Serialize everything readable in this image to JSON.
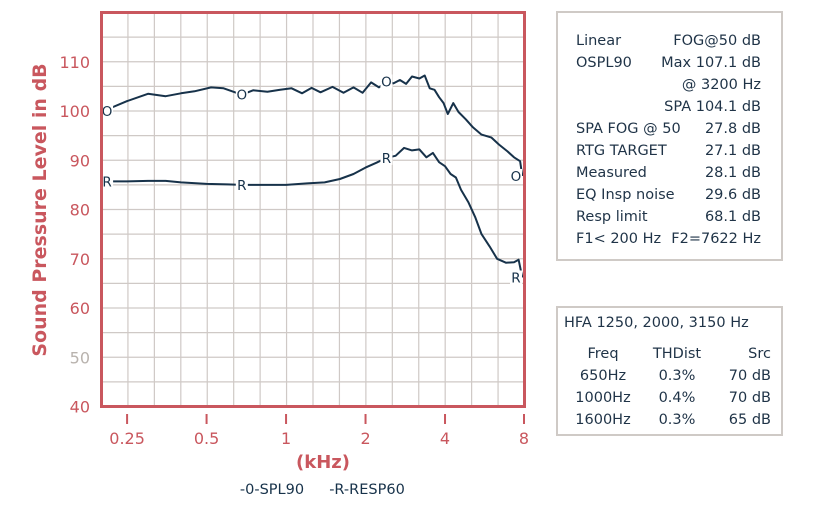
{
  "chart_data": {
    "type": "line",
    "title": "",
    "xlabel": "(kHz)",
    "ylabel": "Sound Pressure Level in dB",
    "x_scale": "log2",
    "xlim": [
      0.2,
      8
    ],
    "ylim": [
      40,
      120
    ],
    "x_ticks": [
      0.25,
      0.5,
      1,
      2,
      4,
      8
    ],
    "x_tick_labels": [
      "0.25",
      "0.5",
      "1",
      "2",
      "4",
      "8"
    ],
    "y_ticks": [
      40,
      50,
      60,
      70,
      80,
      90,
      100,
      110
    ],
    "y_tick_labels": [
      "40",
      "50",
      "60",
      "70",
      "80",
      "90",
      "100",
      "110"
    ],
    "grid": true,
    "grid_minor": {
      "x_per_octave": 3,
      "y_step_db": 5
    },
    "legend_position": "bottom",
    "legend": [
      "-0-SPL90",
      "-R-RESP60"
    ],
    "series": [
      {
        "name": "SPL90",
        "marker": "O",
        "color": "#17324a",
        "x": [
          0.21,
          0.25,
          0.3,
          0.35,
          0.4,
          0.45,
          0.52,
          0.58,
          0.68,
          0.75,
          0.85,
          0.95,
          1.05,
          1.15,
          1.25,
          1.35,
          1.5,
          1.65,
          1.8,
          1.95,
          2.1,
          2.25,
          2.4,
          2.55,
          2.7,
          2.85,
          3.0,
          3.2,
          3.35,
          3.5,
          3.65,
          3.8,
          3.95,
          4.1,
          4.3,
          4.5,
          4.8,
          5.1,
          5.5,
          6.0,
          6.4,
          6.9,
          7.3,
          7.7,
          7.85
        ],
        "y": [
          100.3,
          102,
          103.5,
          103,
          103.6,
          104,
          104.8,
          104.6,
          103.3,
          104.2,
          103.9,
          104.3,
          104.6,
          103.6,
          104.7,
          103.8,
          104.9,
          103.7,
          104.8,
          103.7,
          105.8,
          104.8,
          106,
          105.6,
          106.3,
          105.5,
          107,
          106.6,
          107.2,
          104.6,
          104.3,
          102.8,
          101.6,
          99.4,
          101.6,
          99.8,
          98.3,
          96.7,
          95.2,
          94.6,
          93.2,
          91.8,
          90.6,
          89.8,
          86.8
        ],
        "markers_at": [
          [
            0.21,
            100
          ],
          [
            0.68,
            103.3
          ],
          [
            2.4,
            106
          ],
          [
            7.9,
            86.8
          ]
        ]
      },
      {
        "name": "RESP60",
        "marker": "R",
        "color": "#17324a",
        "x": [
          0.21,
          0.25,
          0.3,
          0.35,
          0.4,
          0.5,
          0.6,
          0.68,
          0.8,
          1.0,
          1.2,
          1.4,
          1.6,
          1.8,
          2.0,
          2.2,
          2.4,
          2.6,
          2.8,
          3.0,
          3.2,
          3.4,
          3.6,
          3.8,
          4.0,
          4.2,
          4.4,
          4.6,
          4.9,
          5.2,
          5.5,
          5.9,
          6.3,
          6.8,
          7.3,
          7.6,
          7.85
        ],
        "y": [
          85.7,
          85.7,
          85.8,
          85.8,
          85.5,
          85.2,
          85.1,
          85.0,
          85.0,
          85.0,
          85.3,
          85.5,
          86.2,
          87.2,
          88.5,
          89.5,
          90.5,
          90.9,
          92.5,
          92.0,
          92.2,
          90.6,
          91.5,
          89.6,
          88.8,
          87.2,
          86.5,
          84.0,
          81.5,
          78.5,
          75.0,
          72.5,
          70.0,
          69.2,
          69.3,
          69.8,
          66.2
        ],
        "markers_at": [
          [
            0.21,
            85.7
          ],
          [
            0.68,
            85.0
          ],
          [
            2.4,
            90.5
          ],
          [
            7.9,
            66.2
          ]
        ]
      }
    ]
  },
  "axes": {
    "ylabel": "Sound Pressure Level in dB",
    "xlabel": "(kHz)",
    "y_ticks": [
      {
        "label": "110",
        "value": 110
      },
      {
        "label": "100",
        "value": 100
      },
      {
        "label": "90",
        "value": 90
      },
      {
        "label": "80",
        "value": 80
      },
      {
        "label": "70",
        "value": 70
      },
      {
        "label": "60",
        "value": 60
      },
      {
        "label": "50",
        "value": 50
      },
      {
        "label": "40",
        "value": 40
      }
    ],
    "x_ticks": [
      {
        "label": "0.25",
        "value": 0.25
      },
      {
        "label": "0.5",
        "value": 0.5
      },
      {
        "label": "1",
        "value": 1
      },
      {
        "label": "2",
        "value": 2
      },
      {
        "label": "4",
        "value": 4
      },
      {
        "label": "8",
        "value": 8
      }
    ]
  },
  "legend": {
    "spl90": "-0-SPL90",
    "resp60": "-R-RESP60"
  },
  "colors": {
    "frame": "#c9575e",
    "axis_text": "#c9575e",
    "axis_text_muted": "#b9b3ae",
    "grid": "#cfc9c6",
    "curve": "#17324a",
    "text": "#1f3347",
    "panel_border": "#cfcac6"
  },
  "info_panel": {
    "rows": [
      {
        "left": "Linear",
        "right": "FOG@50 dB"
      },
      {
        "left": "OSPL90",
        "right": "Max 107.1 dB"
      },
      {
        "left": "",
        "right": "@ 3200 Hz"
      },
      {
        "left": "",
        "right": "SPA 104.1 dB"
      },
      {
        "left": "SPA FOG @ 50",
        "right": "27.8 dB"
      },
      {
        "left": "RTG TARGET",
        "right": "27.1 dB"
      },
      {
        "left": "Measured",
        "right": "28.1 dB"
      },
      {
        "left": "EQ Insp noise",
        "right": "29.6 dB"
      },
      {
        "left": "Resp limit",
        "right": "68.1 dB"
      },
      {
        "left": "F1< 200 Hz",
        "right": "F2=7622 Hz"
      }
    ]
  },
  "hfa_panel": {
    "title": "HFA 1250, 2000, 3150 Hz",
    "headers": {
      "freq": "Freq",
      "thd": "THDist",
      "src": "Src"
    },
    "rows": [
      {
        "freq": "650Hz",
        "thd": "0.3%",
        "src": "70 dB"
      },
      {
        "freq": "1000Hz",
        "thd": "0.4%",
        "src": "70 dB"
      },
      {
        "freq": "1600Hz",
        "thd": "0.3%",
        "src": "65 dB"
      }
    ]
  }
}
